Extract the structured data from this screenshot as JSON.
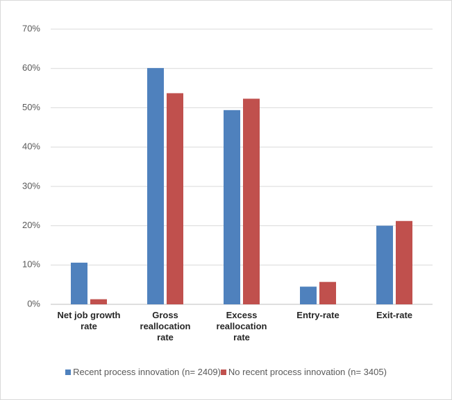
{
  "chart_data": {
    "type": "bar",
    "categories": [
      "Net job growth rate",
      "Gross reallocation rate",
      "Excess reallocation rate",
      "Entry-rate",
      "Exit-rate"
    ],
    "series": [
      {
        "name": "Recent process innovation (n= 2409)",
        "color": "#4f81bd",
        "values": [
          10.6,
          60.1,
          49.4,
          4.5,
          20.0
        ]
      },
      {
        "name": "No recent process innovation (n= 3405)",
        "color": "#c0504d",
        "values": [
          1.3,
          53.7,
          52.3,
          5.7,
          21.2
        ]
      }
    ],
    "ylim": [
      0,
      70
    ],
    "yticks": [
      {
        "value": 0,
        "label": "0%"
      },
      {
        "value": 10,
        "label": "10%"
      },
      {
        "value": 20,
        "label": "20%"
      },
      {
        "value": 30,
        "label": "30%"
      },
      {
        "value": 40,
        "label": "40%"
      },
      {
        "value": 50,
        "label": "50%"
      },
      {
        "value": 60,
        "label": "60%"
      },
      {
        "value": 70,
        "label": "70%"
      }
    ],
    "grid": true
  }
}
